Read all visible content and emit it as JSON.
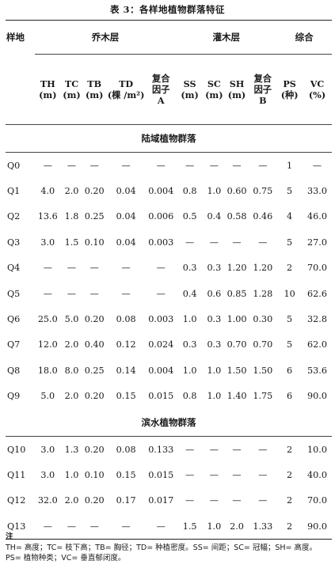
{
  "caption": "表 3：各样地植物群落特征",
  "header": {
    "site": "样地",
    "tree_layer": "乔木层",
    "shrub_layer": "灌木层",
    "summary": "综合",
    "cols": [
      {
        "l1": "TH",
        "l2": "(m)",
        "l3": ""
      },
      {
        "l1": "TC",
        "l2": "(m)",
        "l3": ""
      },
      {
        "l1": "TB",
        "l2": "(m)",
        "l3": ""
      },
      {
        "l1": "TD",
        "l2": "(棵 /m²)",
        "l3": ""
      },
      {
        "l1": "复合",
        "l2": "因子",
        "l3": "A"
      },
      {
        "l1": "SS",
        "l2": "(m)",
        "l3": ""
      },
      {
        "l1": "SC",
        "l2": "(m)",
        "l3": ""
      },
      {
        "l1": "SH",
        "l2": "(m)",
        "l3": ""
      },
      {
        "l1": "复合",
        "l2": "因子",
        "l3": "B"
      },
      {
        "l1": "PS",
        "l2": "(种)",
        "l3": ""
      },
      {
        "l1": "VC",
        "l2": "(%)",
        "l3": ""
      }
    ]
  },
  "sections": [
    {
      "title": "陆域植物群落",
      "rows": [
        [
          "Q0",
          "—",
          "—",
          "—",
          "—",
          "—",
          "—",
          "—",
          "—",
          "—",
          "1",
          "—"
        ],
        [
          "Q1",
          "4.0",
          "2.0",
          "0.20",
          "0.04",
          "0.004",
          "0.8",
          "1.0",
          "0.60",
          "0.75",
          "5",
          "33.0"
        ],
        [
          "Q2",
          "13.6",
          "1.8",
          "0.25",
          "0.04",
          "0.006",
          "0.5",
          "0.4",
          "0.58",
          "0.46",
          "4",
          "46.0"
        ],
        [
          "Q3",
          "3.0",
          "1.5",
          "0.10",
          "0.04",
          "0.003",
          "—",
          "—",
          "—",
          "—",
          "5",
          "27.0"
        ],
        [
          "Q4",
          "—",
          "—",
          "—",
          "—",
          "—",
          "0.3",
          "0.3",
          "1.20",
          "1.20",
          "2",
          "70.0"
        ],
        [
          "Q5",
          "—",
          "—",
          "—",
          "—",
          "—",
          "0.4",
          "0.6",
          "0.85",
          "1.28",
          "10",
          "62.6"
        ],
        [
          "Q6",
          "25.0",
          "5.0",
          "0.20",
          "0.08",
          "0.003",
          "1.0",
          "0.3",
          "1.00",
          "0.30",
          "5",
          "32.8"
        ],
        [
          "Q7",
          "12.0",
          "2.0",
          "0.40",
          "0.12",
          "0.024",
          "0.3",
          "0.3",
          "0.70",
          "0.70",
          "5",
          "62.0"
        ],
        [
          "Q8",
          "18.0",
          "8.0",
          "0.25",
          "0.14",
          "0.004",
          "1.0",
          "1.0",
          "1.50",
          "1.50",
          "6",
          "53.6"
        ],
        [
          "Q9",
          "5.0",
          "2.0",
          "0.20",
          "0.15",
          "0.015",
          "0.8",
          "1.0",
          "1.40",
          "1.75",
          "6",
          "90.0"
        ]
      ]
    },
    {
      "title": "滨水植物群落",
      "rows": [
        [
          "Q10",
          "3.0",
          "1.3",
          "0.20",
          "0.08",
          "0.133",
          "—",
          "—",
          "—",
          "—",
          "2",
          "10.0"
        ],
        [
          "Q11",
          "3.0",
          "1.0",
          "0.10",
          "0.15",
          "0.015",
          "—",
          "—",
          "—",
          "—",
          "2",
          "40.0"
        ],
        [
          "Q12",
          "32.0",
          "2.0",
          "0.20",
          "0.17",
          "0.017",
          "—",
          "—",
          "—",
          "—",
          "2",
          "70.0"
        ],
        [
          "Q13",
          "—",
          "—",
          "—",
          "—",
          "—",
          "1.5",
          "1.0",
          "2.0",
          "1.33",
          "2",
          "90.0"
        ]
      ]
    }
  ],
  "notes": {
    "title": "注",
    "line1": "TH= 高度；TC= 枝下高；TB= 胸径；TD= 种植密度。SS= 间距；SC= 冠幅；SH= 高度。",
    "line2": "PS= 植物种类；VC= 垂直郁闭度。"
  }
}
